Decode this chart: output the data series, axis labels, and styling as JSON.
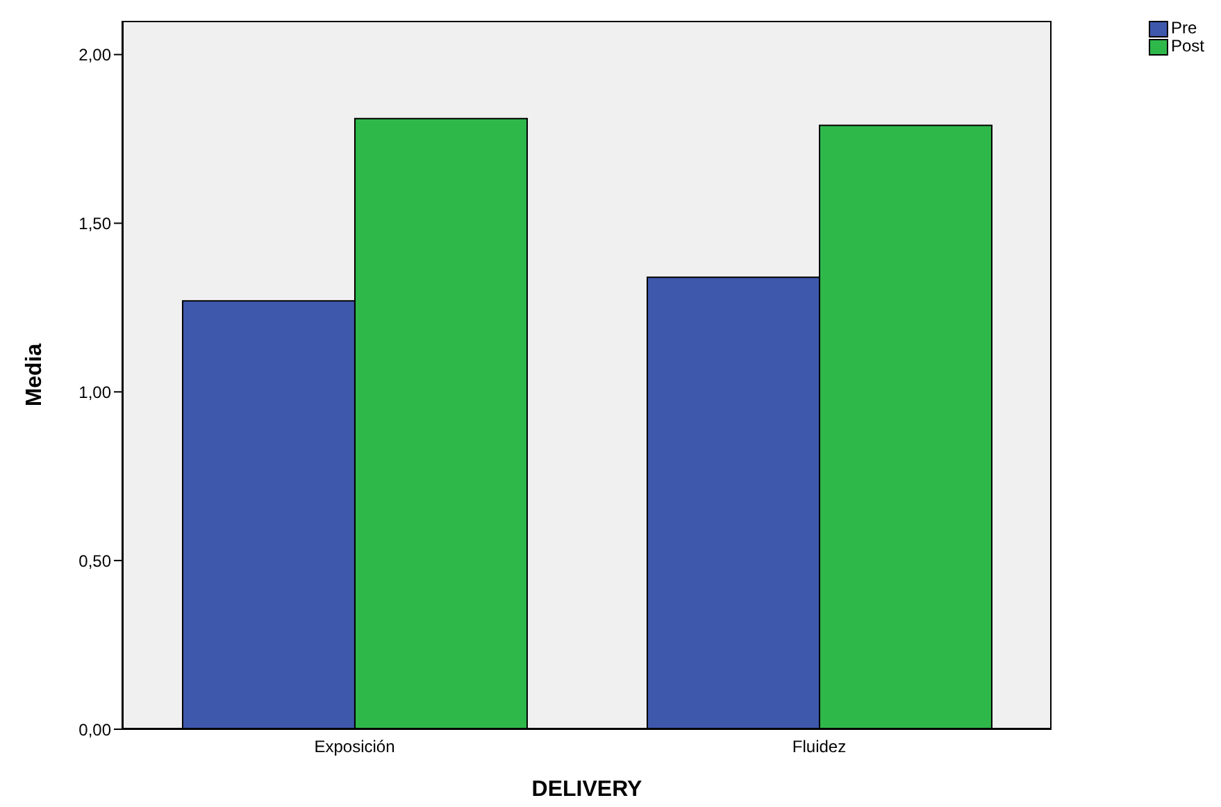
{
  "chart_data": {
    "type": "bar",
    "xlabel": "DELIVERY",
    "ylabel": "Media",
    "categories": [
      "Exposición",
      "Fluidez"
    ],
    "series": [
      {
        "name": "Pre",
        "color": "#3e58ac",
        "values": [
          1.27,
          1.34
        ]
      },
      {
        "name": "Post",
        "color": "#2fb84a",
        "values": [
          1.81,
          1.79
        ]
      }
    ],
    "ylim": [
      0,
      2.1
    ],
    "yticks": [
      {
        "value": 0,
        "label": "0,00"
      },
      {
        "value": 0.5,
        "label": "0,50"
      },
      {
        "value": 1,
        "label": "1,00"
      },
      {
        "value": 1.5,
        "label": "1,50"
      },
      {
        "value": 2,
        "label": "2,00"
      }
    ],
    "legend": "top right"
  }
}
